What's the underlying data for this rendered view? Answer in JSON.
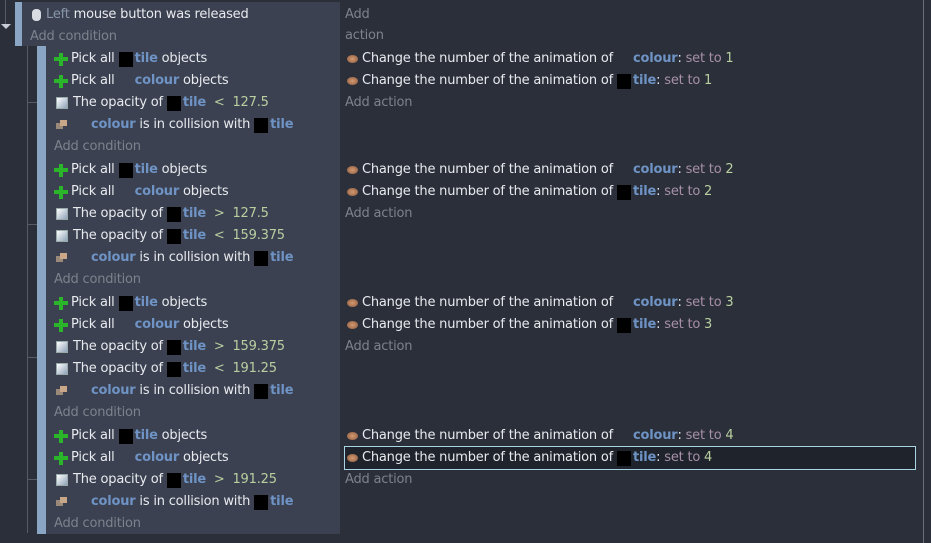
{
  "colors": {
    "accent_bar": "#8aa6c4",
    "object": "#6e93c4",
    "selection": "#a8d4e6"
  },
  "top_event": {
    "conditions": [
      [
        {
          "icon": "mouse-icon"
        },
        {
          "k": "g",
          "text": "Left"
        },
        {
          "k": "t",
          "text": " mouse button was released"
        }
      ]
    ],
    "add_condition": "Add condition",
    "add_action": "Add action"
  },
  "sub_events": [
    {
      "conditions": [
        [
          {
            "icon": "plus-icon"
          },
          {
            "k": "t",
            "text": "Pick all"
          },
          {
            "obj": "sq"
          },
          {
            "k": "o",
            "text": "tile"
          },
          {
            "k": "t",
            "text": " objects"
          }
        ],
        [
          {
            "icon": "plus-icon"
          },
          {
            "k": "t",
            "text": "Pick all"
          },
          {
            "obj": "blank"
          },
          {
            "k": "o",
            "text": "colour"
          },
          {
            "k": "t",
            "text": " objects"
          }
        ],
        [
          {
            "icon": "opacity-icon"
          },
          {
            "k": "t",
            "text": "The opacity of"
          },
          {
            "obj": "sq"
          },
          {
            "k": "o",
            "text": "tile"
          },
          {
            "k": "op",
            "text": "  <  127.5"
          }
        ],
        [
          {
            "icon": "collision-icon"
          },
          {
            "obj": "blank"
          },
          {
            "k": "o",
            "text": "colour"
          },
          {
            "k": "t",
            "text": " is in collision with"
          },
          {
            "obj": "sq"
          },
          {
            "k": "o",
            "text": "tile"
          }
        ]
      ],
      "actions": [
        [
          {
            "icon": "animation-icon"
          },
          {
            "k": "t",
            "text": "Change the number of the animation of"
          },
          {
            "obj": "blank"
          },
          {
            "k": "o",
            "text": "colour"
          },
          {
            "k": "t",
            "text": ":"
          },
          {
            "k": "p",
            "text": " set to "
          },
          {
            "k": "n",
            "text": "1"
          }
        ],
        [
          {
            "icon": "animation-icon"
          },
          {
            "k": "t",
            "text": "Change the number of the animation of"
          },
          {
            "obj": "sq"
          },
          {
            "k": "o",
            "text": "tile"
          },
          {
            "k": "t",
            "text": ":"
          },
          {
            "k": "p",
            "text": " set to "
          },
          {
            "k": "n",
            "text": "1"
          }
        ]
      ]
    },
    {
      "conditions": [
        [
          {
            "icon": "plus-icon"
          },
          {
            "k": "t",
            "text": "Pick all"
          },
          {
            "obj": "sq"
          },
          {
            "k": "o",
            "text": "tile"
          },
          {
            "k": "t",
            "text": " objects"
          }
        ],
        [
          {
            "icon": "plus-icon"
          },
          {
            "k": "t",
            "text": "Pick all"
          },
          {
            "obj": "blank"
          },
          {
            "k": "o",
            "text": "colour"
          },
          {
            "k": "t",
            "text": " objects"
          }
        ],
        [
          {
            "icon": "opacity-icon"
          },
          {
            "k": "t",
            "text": "The opacity of"
          },
          {
            "obj": "sq"
          },
          {
            "k": "o",
            "text": "tile"
          },
          {
            "k": "op",
            "text": "  >  127.5"
          }
        ],
        [
          {
            "icon": "opacity-icon"
          },
          {
            "k": "t",
            "text": "The opacity of"
          },
          {
            "obj": "sq"
          },
          {
            "k": "o",
            "text": "tile"
          },
          {
            "k": "op",
            "text": "  <  159.375"
          }
        ],
        [
          {
            "icon": "collision-icon"
          },
          {
            "obj": "blank"
          },
          {
            "k": "o",
            "text": "colour"
          },
          {
            "k": "t",
            "text": " is in collision with"
          },
          {
            "obj": "sq"
          },
          {
            "k": "o",
            "text": "tile"
          }
        ]
      ],
      "actions": [
        [
          {
            "icon": "animation-icon"
          },
          {
            "k": "t",
            "text": "Change the number of the animation of"
          },
          {
            "obj": "blank"
          },
          {
            "k": "o",
            "text": "colour"
          },
          {
            "k": "t",
            "text": ":"
          },
          {
            "k": "p",
            "text": " set to "
          },
          {
            "k": "n",
            "text": "2"
          }
        ],
        [
          {
            "icon": "animation-icon"
          },
          {
            "k": "t",
            "text": "Change the number of the animation of"
          },
          {
            "obj": "sq"
          },
          {
            "k": "o",
            "text": "tile"
          },
          {
            "k": "t",
            "text": ":"
          },
          {
            "k": "p",
            "text": " set to "
          },
          {
            "k": "n",
            "text": "2"
          }
        ]
      ]
    },
    {
      "conditions": [
        [
          {
            "icon": "plus-icon"
          },
          {
            "k": "t",
            "text": "Pick all"
          },
          {
            "obj": "sq"
          },
          {
            "k": "o",
            "text": "tile"
          },
          {
            "k": "t",
            "text": " objects"
          }
        ],
        [
          {
            "icon": "plus-icon"
          },
          {
            "k": "t",
            "text": "Pick all"
          },
          {
            "obj": "blank"
          },
          {
            "k": "o",
            "text": "colour"
          },
          {
            "k": "t",
            "text": " objects"
          }
        ],
        [
          {
            "icon": "opacity-icon"
          },
          {
            "k": "t",
            "text": "The opacity of"
          },
          {
            "obj": "sq"
          },
          {
            "k": "o",
            "text": "tile"
          },
          {
            "k": "op",
            "text": "  >  159.375"
          }
        ],
        [
          {
            "icon": "opacity-icon"
          },
          {
            "k": "t",
            "text": "The opacity of"
          },
          {
            "obj": "sq"
          },
          {
            "k": "o",
            "text": "tile"
          },
          {
            "k": "op",
            "text": "  <  191.25"
          }
        ],
        [
          {
            "icon": "collision-icon"
          },
          {
            "obj": "blank"
          },
          {
            "k": "o",
            "text": "colour"
          },
          {
            "k": "t",
            "text": " is in collision with"
          },
          {
            "obj": "sq"
          },
          {
            "k": "o",
            "text": "tile"
          }
        ]
      ],
      "actions": [
        [
          {
            "icon": "animation-icon"
          },
          {
            "k": "t",
            "text": "Change the number of the animation of"
          },
          {
            "obj": "blank"
          },
          {
            "k": "o",
            "text": "colour"
          },
          {
            "k": "t",
            "text": ":"
          },
          {
            "k": "p",
            "text": " set to "
          },
          {
            "k": "n",
            "text": "3"
          }
        ],
        [
          {
            "icon": "animation-icon"
          },
          {
            "k": "t",
            "text": "Change the number of the animation of"
          },
          {
            "obj": "sq"
          },
          {
            "k": "o",
            "text": "tile"
          },
          {
            "k": "t",
            "text": ":"
          },
          {
            "k": "p",
            "text": " set to "
          },
          {
            "k": "n",
            "text": "3"
          }
        ]
      ]
    },
    {
      "conditions": [
        [
          {
            "icon": "plus-icon"
          },
          {
            "k": "t",
            "text": "Pick all"
          },
          {
            "obj": "sq"
          },
          {
            "k": "o",
            "text": "tile"
          },
          {
            "k": "t",
            "text": " objects"
          }
        ],
        [
          {
            "icon": "plus-icon"
          },
          {
            "k": "t",
            "text": "Pick all"
          },
          {
            "obj": "blank"
          },
          {
            "k": "o",
            "text": "colour"
          },
          {
            "k": "t",
            "text": " objects"
          }
        ],
        [
          {
            "icon": "opacity-icon"
          },
          {
            "k": "t",
            "text": "The opacity of"
          },
          {
            "obj": "sq"
          },
          {
            "k": "o",
            "text": "tile"
          },
          {
            "k": "op",
            "text": "  >  191.25"
          }
        ],
        [
          {
            "icon": "collision-icon"
          },
          {
            "obj": "blank"
          },
          {
            "k": "o",
            "text": "colour"
          },
          {
            "k": "t",
            "text": " is in collision with"
          },
          {
            "obj": "sq"
          },
          {
            "k": "o",
            "text": "tile"
          }
        ]
      ],
      "actions": [
        [
          {
            "icon": "animation-icon"
          },
          {
            "k": "t",
            "text": "Change the number of the animation of"
          },
          {
            "obj": "blank"
          },
          {
            "k": "o",
            "text": "colour"
          },
          {
            "k": "t",
            "text": ":"
          },
          {
            "k": "p",
            "text": " set to "
          },
          {
            "k": "n",
            "text": "4"
          }
        ],
        [
          {
            "icon": "animation-icon"
          },
          {
            "k": "t",
            "text": "Change the number of the animation of"
          },
          {
            "obj": "sq"
          },
          {
            "k": "o",
            "text": "tile"
          },
          {
            "k": "t",
            "text": ":"
          },
          {
            "k": "p",
            "text": " set to "
          },
          {
            "k": "n",
            "text": "4"
          }
        ]
      ],
      "selected_action": 1
    }
  ],
  "add_condition": "Add condition",
  "add_action": "Add action"
}
